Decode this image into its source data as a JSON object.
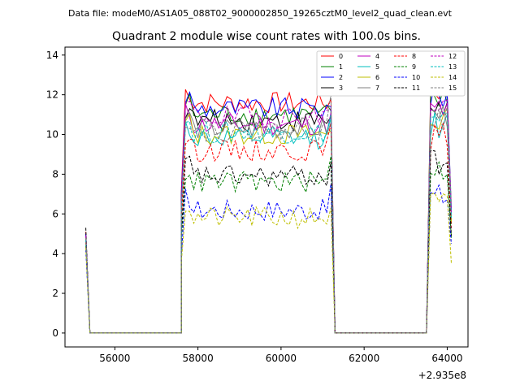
{
  "figure": {
    "suptitle": "Data file: modeM0/AS1A05_088T02_9000002850_19265cztM0_level2_quad_clean.evt"
  },
  "chart_data": {
    "type": "line",
    "title": "Quadrant 2 module wise count rates with 100.0s bins.",
    "xlabel": "",
    "ylabel": "",
    "x_offset_label": "+2.935e8",
    "xlim": [
      54800,
      64500
    ],
    "ylim": [
      -0.7,
      14.4
    ],
    "x_ticks": [
      56000,
      58000,
      60000,
      62000,
      64000
    ],
    "x_tick_labels": [
      "56000",
      "58000",
      "60000",
      "62000",
      "64000"
    ],
    "y_ticks": [
      0,
      2,
      4,
      6,
      8,
      10,
      12,
      14
    ],
    "y_tick_labels": [
      "0",
      "2",
      "4",
      "6",
      "8",
      "10",
      "12",
      "14"
    ],
    "grid": false,
    "legend_position": "top-right",
    "segments": [
      {
        "x_start": 55300,
        "x_end": 55400,
        "level": "drop"
      },
      {
        "x_start": 55400,
        "x_end": 57600,
        "level": "zero"
      },
      {
        "x_start": 57600,
        "x_end": 61300,
        "level": "high"
      },
      {
        "x_start": 61300,
        "x_end": 63500,
        "level": "zero"
      },
      {
        "x_start": 63500,
        "x_end": 64100,
        "level": "high"
      }
    ],
    "series": [
      {
        "name": "0",
        "color": "#ff0000",
        "dash": "solid",
        "start": 5.1,
        "mean": 11.6,
        "end_level": 11.8,
        "final": 6.0
      },
      {
        "name": "1",
        "color": "#008000",
        "dash": "solid",
        "start": 4.9,
        "mean": 11.0,
        "end_level": 11.2,
        "final": 5.5
      },
      {
        "name": "2",
        "color": "#0000ff",
        "dash": "solid",
        "start": 5.0,
        "mean": 11.3,
        "end_level": 11.4,
        "final": 6.2
      },
      {
        "name": "3",
        "color": "#000000",
        "dash": "solid",
        "start": 4.8,
        "mean": 10.7,
        "end_level": 10.9,
        "final": 5.8
      },
      {
        "name": "4",
        "color": "#bf00bf",
        "dash": "solid",
        "start": 4.9,
        "mean": 10.5,
        "end_level": 11.1,
        "final": 6.1
      },
      {
        "name": "5",
        "color": "#00bfbf",
        "dash": "solid",
        "start": 4.7,
        "mean": 9.8,
        "end_level": 10.8,
        "final": 5.7
      },
      {
        "name": "6",
        "color": "#bfbf00",
        "dash": "solid",
        "start": 4.6,
        "mean": 10.0,
        "end_level": 10.2,
        "final": 5.6
      },
      {
        "name": "7",
        "color": "#808080",
        "dash": "solid",
        "start": 4.8,
        "mean": 10.3,
        "end_level": 10.6,
        "final": 5.9
      },
      {
        "name": "8",
        "color": "#ff0000",
        "dash": "dashed",
        "start": 4.6,
        "mean": 9.2,
        "end_level": 10.5,
        "final": 5.2
      },
      {
        "name": "9",
        "color": "#008000",
        "dash": "dashed",
        "start": 4.4,
        "mean": 7.6,
        "end_level": 8.9,
        "final": 4.8
      },
      {
        "name": "10",
        "color": "#0000ff",
        "dash": "dashed",
        "start": 4.2,
        "mean": 6.2,
        "end_level": 7.5,
        "final": 4.5
      },
      {
        "name": "11",
        "color": "#000000",
        "dash": "dashed",
        "start": 5.3,
        "mean": 7.9,
        "end_level": 8.6,
        "final": 4.9
      },
      {
        "name": "12",
        "color": "#bf00bf",
        "dash": "dashed",
        "start": 4.9,
        "mean": 10.9,
        "end_level": 11.3,
        "final": 6.0
      },
      {
        "name": "13",
        "color": "#00bfbf",
        "dash": "dashed",
        "start": 4.7,
        "mean": 10.1,
        "end_level": 11.0,
        "final": 5.8
      },
      {
        "name": "14",
        "color": "#bfbf00",
        "dash": "dashed",
        "start": 4.3,
        "mean": 5.8,
        "end_level": 6.3,
        "final": 3.5
      },
      {
        "name": "15",
        "color": "#808080",
        "dash": "dashed",
        "start": 4.8,
        "mean": 10.2,
        "end_level": 12.0,
        "final": 6.5
      }
    ]
  }
}
